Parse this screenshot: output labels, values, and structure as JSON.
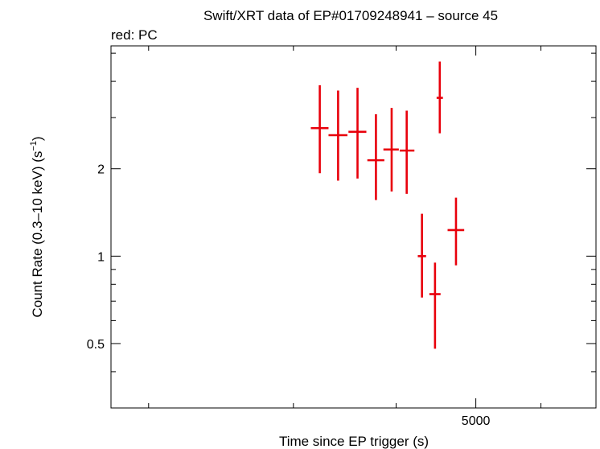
{
  "chart_data": {
    "type": "scatter",
    "title": "Swift/XRT data of EP#01709248941 – source 45",
    "subtitle": "red: PC",
    "xlabel": "Time since EP trigger (s)",
    "ylabel_main": "Count Rate (0.3–10 keV) (s",
    "ylabel_sup": "−1",
    "ylabel_close": ")",
    "xscale": "log",
    "yscale": "log",
    "xlim": [
      1800,
      7000
    ],
    "ylim": [
      0.3,
      5.3
    ],
    "xticks": [
      {
        "value": 5000,
        "label": "5000"
      }
    ],
    "xminor": [
      2000,
      3000,
      4000,
      6000,
      7000
    ],
    "yticks": [
      {
        "value": 0.5,
        "label": "0.5"
      },
      {
        "value": 1,
        "label": "1"
      },
      {
        "value": 2,
        "label": "2"
      }
    ],
    "yminor": [
      0.4,
      0.6,
      0.7,
      0.8,
      0.9,
      3,
      4,
      5
    ],
    "grid": false,
    "series": [
      {
        "color": "#e8000b",
        "points": [
          {
            "x": 3230,
            "xerr": [
              80,
              80
            ],
            "y": 2.76,
            "yerr": [
              1.93,
              3.88
            ]
          },
          {
            "x": 3400,
            "xerr": [
              90,
              90
            ],
            "y": 2.61,
            "yerr": [
              1.82,
              3.72
            ]
          },
          {
            "x": 3590,
            "xerr": [
              90,
              90
            ],
            "y": 2.68,
            "yerr": [
              1.85,
              3.8
            ]
          },
          {
            "x": 3780,
            "xerr": [
              90,
              90
            ],
            "y": 2.14,
            "yerr": [
              1.56,
              3.08
            ]
          },
          {
            "x": 3950,
            "xerr": [
              90,
              80
            ],
            "y": 2.33,
            "yerr": [
              1.67,
              3.24
            ]
          },
          {
            "x": 4120,
            "xerr": [
              80,
              90
            ],
            "y": 2.31,
            "yerr": [
              1.64,
              3.17
            ]
          },
          {
            "x": 4300,
            "xerr": [
              50,
              50
            ],
            "y": 1.0,
            "yerr": [
              0.72,
              1.4
            ]
          },
          {
            "x": 4460,
            "xerr": [
              70,
              70
            ],
            "y": 0.74,
            "yerr": [
              0.48,
              0.95
            ]
          },
          {
            "x": 4520,
            "xerr": [
              40,
              40
            ],
            "y": 3.51,
            "yerr": [
              2.65,
              4.68
            ]
          },
          {
            "x": 4730,
            "xerr": [
              110,
              110
            ],
            "y": 1.23,
            "yerr": [
              0.93,
              1.59
            ]
          }
        ]
      }
    ]
  }
}
